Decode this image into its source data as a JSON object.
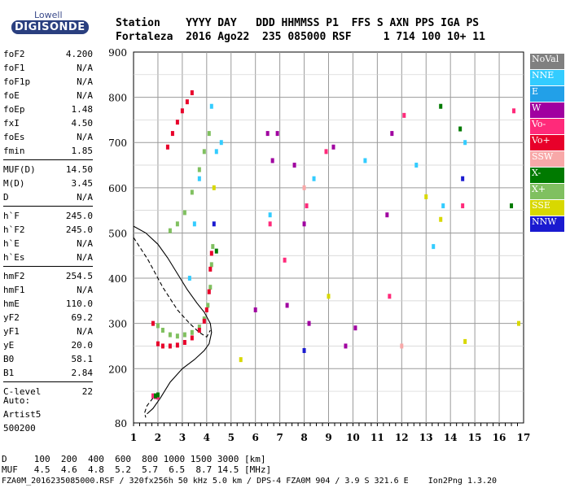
{
  "logo": {
    "line1": "Lowell",
    "line2": "DIGISONDE"
  },
  "header": {
    "labels": "Station    YYYY DAY   DDD HHMMSS P1  FFS S AXN PPS IGA PS",
    "values": "Fortaleza  2016 Ago22  235 085000 RSF     1 714 100 10+ 11"
  },
  "params": [
    {
      "key": "foF2",
      "value": "4.200"
    },
    {
      "key": "foF1",
      "value": "N/A"
    },
    {
      "key": "foF1p",
      "value": "N/A"
    },
    {
      "key": "foE",
      "value": "N/A"
    },
    {
      "key": "foEp",
      "value": "1.48"
    },
    {
      "key": "fxI",
      "value": "4.50"
    },
    {
      "key": "foEs",
      "value": "N/A"
    },
    {
      "key": "fmin",
      "value": "1.85"
    },
    {
      "key": "MUF(D)",
      "value": "14.50"
    },
    {
      "key": "M(D)",
      "value": "3.45"
    },
    {
      "key": "D",
      "value": "N/A"
    },
    {
      "key": "h`F",
      "value": "245.0"
    },
    {
      "key": "h`F2",
      "value": "245.0"
    },
    {
      "key": "h`E",
      "value": "N/A"
    },
    {
      "key": "h`Es",
      "value": "N/A"
    },
    {
      "key": "hmF2",
      "value": "254.5"
    },
    {
      "key": "hmF1",
      "value": "N/A"
    },
    {
      "key": "hmE",
      "value": "110.0"
    },
    {
      "key": "yF2",
      "value": "69.2"
    },
    {
      "key": "yF1",
      "value": "N/A"
    },
    {
      "key": "yE",
      "value": "20.0"
    },
    {
      "key": "B0",
      "value": "58.1"
    },
    {
      "key": "B1",
      "value": "2.84"
    },
    {
      "key": "C-level",
      "value": "22"
    }
  ],
  "auto": {
    "line1": "Auto:",
    "line2": "Artist5",
    "line3": "500200"
  },
  "legend": [
    {
      "label": "NoVal",
      "color": "#808080"
    },
    {
      "label": "NNE",
      "color": "#33ccff"
    },
    {
      "label": "E",
      "color": "#22a0e8"
    },
    {
      "label": "W",
      "color": "#a000a0"
    },
    {
      "label": "Vo-",
      "color": "#ff2a7a"
    },
    {
      "label": "Vo+",
      "color": "#e8002a"
    },
    {
      "label": "SSW",
      "color": "#f8a8a8"
    },
    {
      "label": "X-",
      "color": "#007a00"
    },
    {
      "label": "X+",
      "color": "#80c060"
    },
    {
      "label": "SSE",
      "color": "#d8d800"
    },
    {
      "label": "NNW",
      "color": "#1a1ad0"
    }
  ],
  "footer": {
    "d_row": "D     100  200  400  600  800 1000 1500 3000 [km]",
    "muf_row": "MUF   4.5  4.6  4.8  5.2  5.7  6.5  8.7 14.5 [MHz]",
    "file_row": "FZA0M_2016235085000.RSF / 320fx256h 50 kHz 5.0 km / DPS-4 FZA0M 904 / 3.9 S 321.6 E    Ion2Png 1.3.20"
  },
  "chart_data": {
    "type": "scatter",
    "x_ticks": [
      "1",
      "2",
      "3",
      "4",
      "5",
      "6",
      "7",
      "8",
      "9",
      "10",
      "11",
      "12",
      "13",
      "14",
      "15",
      "16",
      "17"
    ],
    "y_ticks": [
      "80",
      "200",
      "300",
      "400",
      "500",
      "600",
      "700",
      "800",
      "900"
    ],
    "xlim": [
      1,
      17
    ],
    "ylim": [
      80,
      900
    ],
    "grid": true,
    "legend_position": "right",
    "series": [
      {
        "label": "X+",
        "color": "#80c060",
        "points": [
          [
            2.0,
            295
          ],
          [
            2.2,
            285
          ],
          [
            2.5,
            275
          ],
          [
            2.8,
            272
          ],
          [
            3.1,
            275
          ],
          [
            3.4,
            280
          ],
          [
            3.7,
            292
          ],
          [
            3.9,
            310
          ],
          [
            4.05,
            340
          ],
          [
            4.15,
            380
          ],
          [
            4.2,
            430
          ],
          [
            4.25,
            470
          ],
          [
            2.5,
            505
          ],
          [
            2.8,
            520
          ],
          [
            3.1,
            545
          ],
          [
            3.4,
            590
          ],
          [
            3.7,
            640
          ],
          [
            3.9,
            680
          ],
          [
            4.1,
            720
          ]
        ]
      },
      {
        "label": "Vo+",
        "color": "#e8002a",
        "points": [
          [
            1.8,
            300
          ],
          [
            2.0,
            255
          ],
          [
            2.2,
            250
          ],
          [
            2.5,
            250
          ],
          [
            2.8,
            252
          ],
          [
            3.1,
            258
          ],
          [
            3.4,
            268
          ],
          [
            3.7,
            285
          ],
          [
            3.9,
            305
          ],
          [
            4.0,
            330
          ],
          [
            4.1,
            370
          ],
          [
            4.15,
            420
          ],
          [
            4.2,
            455
          ],
          [
            2.4,
            690
          ],
          [
            2.6,
            720
          ],
          [
            2.8,
            745
          ],
          [
            3.0,
            770
          ],
          [
            3.2,
            790
          ],
          [
            3.4,
            810
          ]
        ]
      },
      {
        "label": "Vo-",
        "color": "#ff2a7a",
        "points": [
          [
            1.8,
            140
          ],
          [
            1.9,
            138
          ],
          [
            2.0,
            137
          ],
          [
            6.6,
            520
          ],
          [
            7.2,
            440
          ],
          [
            8.1,
            560
          ],
          [
            8.9,
            680
          ],
          [
            11.5,
            360
          ],
          [
            12.1,
            760
          ],
          [
            14.5,
            560
          ],
          [
            16.6,
            770
          ]
        ]
      },
      {
        "label": "W",
        "color": "#a000a0",
        "points": [
          [
            6.0,
            330
          ],
          [
            6.5,
            720
          ],
          [
            6.7,
            660
          ],
          [
            6.9,
            720
          ],
          [
            7.3,
            340
          ],
          [
            7.6,
            650
          ],
          [
            8.0,
            520
          ],
          [
            8.2,
            300
          ],
          [
            9.2,
            690
          ],
          [
            9.7,
            250
          ],
          [
            10.1,
            290
          ],
          [
            11.4,
            540
          ],
          [
            11.6,
            720
          ]
        ]
      },
      {
        "label": "NNE",
        "color": "#33ccff",
        "points": [
          [
            3.3,
            400
          ],
          [
            3.5,
            520
          ],
          [
            3.7,
            620
          ],
          [
            4.2,
            780
          ],
          [
            4.4,
            680
          ],
          [
            4.6,
            700
          ],
          [
            6.6,
            540
          ],
          [
            8.4,
            620
          ],
          [
            10.5,
            660
          ],
          [
            12.6,
            650
          ],
          [
            13.3,
            470
          ],
          [
            13.7,
            560
          ],
          [
            14.6,
            700
          ]
        ]
      },
      {
        "label": "X-",
        "color": "#007a00",
        "points": [
          [
            1.9,
            140
          ],
          [
            2.0,
            142
          ],
          [
            4.4,
            460
          ],
          [
            13.6,
            780
          ],
          [
            14.4,
            730
          ],
          [
            16.5,
            560
          ]
        ]
      },
      {
        "label": "SSE",
        "color": "#d8d800",
        "points": [
          [
            4.3,
            600
          ],
          [
            5.4,
            220
          ],
          [
            9.0,
            360
          ],
          [
            13.0,
            580
          ],
          [
            13.6,
            530
          ],
          [
            14.6,
            260
          ],
          [
            16.8,
            300
          ]
        ]
      },
      {
        "label": "NNW",
        "color": "#1a1ad0",
        "points": [
          [
            4.3,
            520
          ],
          [
            8.0,
            240
          ],
          [
            14.5,
            620
          ]
        ]
      },
      {
        "label": "SSW",
        "color": "#f8a8a8",
        "points": [
          [
            8.0,
            600
          ],
          [
            12.0,
            250
          ]
        ]
      }
    ],
    "profile_lines": [
      {
        "style": "solid",
        "points": [
          [
            1.55,
            100
          ],
          [
            1.8,
            112
          ],
          [
            2.1,
            135
          ],
          [
            2.5,
            170
          ],
          [
            3.0,
            200
          ],
          [
            3.5,
            220
          ],
          [
            3.9,
            240
          ],
          [
            4.1,
            255
          ],
          [
            4.2,
            280
          ],
          [
            4.15,
            300
          ],
          [
            3.9,
            325
          ],
          [
            3.6,
            345
          ],
          [
            3.2,
            375
          ],
          [
            2.8,
            410
          ],
          [
            2.4,
            445
          ],
          [
            2.0,
            475
          ],
          [
            1.5,
            500
          ],
          [
            1.0,
            515
          ]
        ]
      },
      {
        "style": "dashed",
        "points": [
          [
            1.0,
            490
          ],
          [
            1.6,
            440
          ],
          [
            2.2,
            380
          ],
          [
            2.8,
            330
          ],
          [
            3.3,
            300
          ],
          [
            3.7,
            280
          ],
          [
            4.0,
            270
          ],
          [
            4.15,
            285
          ]
        ]
      },
      {
        "style": "dashed",
        "points": [
          [
            1.8,
            135
          ],
          [
            1.55,
            118
          ],
          [
            1.45,
            102
          ],
          [
            1.5,
            92
          ]
        ]
      }
    ]
  }
}
